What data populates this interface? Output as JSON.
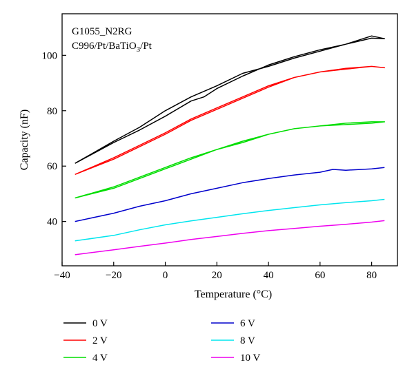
{
  "chart_data": {
    "type": "line",
    "xlabel": "Temperature (°C)",
    "ylabel": "Capacity (nF)",
    "xlim": [
      -40,
      90
    ],
    "ylim": [
      24,
      115
    ],
    "xticks": [
      -40,
      -20,
      0,
      20,
      40,
      60,
      80
    ],
    "yticks": [
      40,
      60,
      80,
      100
    ],
    "grid": false,
    "legend_position": "bottom",
    "annotations": [
      {
        "parts": [
          {
            "t": "G1055_N2RG"
          }
        ]
      },
      {
        "parts": [
          {
            "t": "C996/Pt/BaTiO"
          },
          {
            "t": "3",
            "sub": true
          },
          {
            "t": "/Pt"
          }
        ]
      }
    ],
    "series": [
      {
        "name": "0 V",
        "color": "#000000",
        "x": [
          -35,
          -20,
          -10,
          0,
          10,
          15,
          20,
          30,
          40,
          45,
          50,
          60,
          70,
          80,
          85,
          80,
          75,
          70,
          60,
          50,
          40,
          30,
          20,
          10,
          0,
          -10,
          -20,
          -35
        ],
        "y": [
          61,
          68.5,
          73,
          78,
          83.5,
          85,
          88,
          92.5,
          96.5,
          98,
          99.5,
          102,
          104,
          106.2,
          106,
          107,
          105.5,
          104,
          101.5,
          99,
          96,
          93.5,
          89,
          85,
          80,
          74,
          69,
          61
        ]
      },
      {
        "name": "2 V",
        "color": "#ff0000",
        "x": [
          -35,
          -20,
          -10,
          0,
          10,
          20,
          30,
          40,
          50,
          60,
          70,
          80,
          85,
          80,
          70,
          60,
          50,
          40,
          30,
          20,
          10,
          0,
          -10,
          -20,
          -35
        ],
        "y": [
          57,
          62.5,
          67,
          71.5,
          76.5,
          80.5,
          84.5,
          88.5,
          92,
          94,
          95,
          96,
          95.5,
          96,
          95.3,
          94,
          92,
          89,
          85,
          81,
          77,
          72,
          67.5,
          63,
          57
        ]
      },
      {
        "name": "4 V",
        "color": "#00dd00",
        "x": [
          -35,
          -20,
          -10,
          0,
          10,
          20,
          30,
          40,
          50,
          60,
          70,
          80,
          85,
          80,
          70,
          60,
          50,
          40,
          30,
          20,
          10,
          0,
          -10,
          -20,
          -35
        ],
        "y": [
          48.5,
          52,
          55.5,
          59,
          62.5,
          66,
          69,
          71.5,
          73.5,
          74.5,
          75,
          75.5,
          76,
          76,
          75.5,
          74.5,
          73.5,
          71.5,
          68.5,
          66,
          63,
          59.5,
          56,
          52.5,
          48.5
        ]
      },
      {
        "name": "6 V",
        "color": "#0000cc",
        "x": [
          -35,
          -20,
          -10,
          0,
          10,
          20,
          30,
          40,
          50,
          60,
          65,
          70,
          80,
          85
        ],
        "y": [
          40,
          43,
          45.5,
          47.5,
          50,
          52,
          54,
          55.5,
          56.8,
          57.8,
          58.8,
          58.5,
          59,
          59.5
        ]
      },
      {
        "name": "8 V",
        "color": "#00e5ee",
        "x": [
          -35,
          -20,
          -10,
          0,
          10,
          20,
          30,
          40,
          50,
          60,
          70,
          80,
          85
        ],
        "y": [
          33,
          35,
          37,
          38.8,
          40.2,
          41.5,
          42.8,
          44,
          45,
          46,
          46.8,
          47.5,
          48
        ]
      },
      {
        "name": "10 V",
        "color": "#ee00ee",
        "x": [
          -35,
          -20,
          -10,
          0,
          10,
          20,
          30,
          40,
          50,
          60,
          70,
          80,
          85
        ],
        "y": [
          28,
          29.8,
          31,
          32.2,
          33.5,
          34.6,
          35.7,
          36.7,
          37.5,
          38.3,
          39,
          39.8,
          40.3
        ]
      }
    ]
  }
}
